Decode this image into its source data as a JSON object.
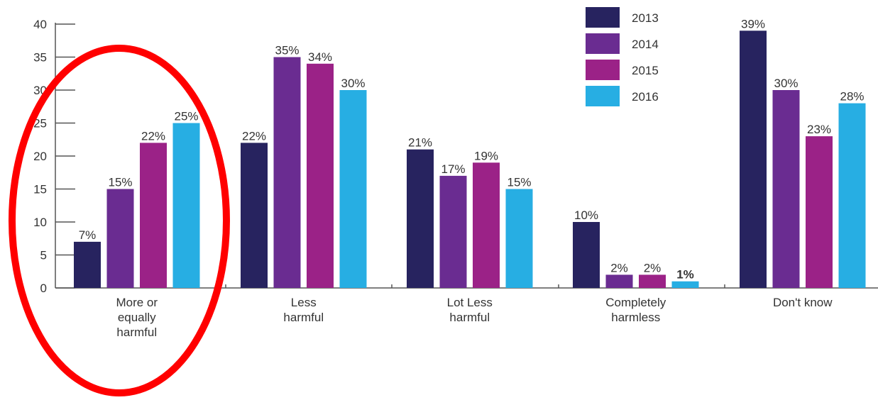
{
  "chart_data": {
    "type": "bar",
    "title": "",
    "xlabel": "",
    "ylabel": "",
    "ylim": [
      0,
      40
    ],
    "yticks": [
      0,
      5,
      10,
      15,
      20,
      25,
      30,
      35,
      40
    ],
    "ytick_labels": [
      "0",
      "5",
      "10",
      "15",
      "20",
      "25",
      "30",
      "35",
      "40"
    ],
    "grid": false,
    "legend_position": "top-center",
    "categories": [
      [
        "More or",
        "equally",
        "harmful"
      ],
      [
        "Less",
        "harmful"
      ],
      [
        "Lot Less",
        "harmful"
      ],
      [
        "Completely",
        "harmless"
      ],
      [
        "Don't know"
      ]
    ],
    "series": [
      {
        "name": "2013",
        "color": "#27235f",
        "values": [
          7,
          22,
          21,
          10,
          39
        ],
        "labels": [
          "7%",
          "22%",
          "21%",
          "10%",
          "39%"
        ]
      },
      {
        "name": "2014",
        "color": "#6a2c91",
        "values": [
          15,
          35,
          17,
          2,
          30
        ],
        "labels": [
          "15%",
          "35%",
          "17%",
          "2%",
          "30%"
        ]
      },
      {
        "name": "2015",
        "color": "#9b2287",
        "values": [
          22,
          34,
          19,
          2,
          23
        ],
        "labels": [
          "22%",
          "34%",
          "19%",
          "2%",
          "23%"
        ]
      },
      {
        "name": "2016",
        "color": "#27aee3",
        "values": [
          25,
          30,
          15,
          1,
          28
        ],
        "labels": [
          "25%",
          "30%",
          "15%",
          "1%",
          "28%"
        ]
      }
    ],
    "highlight_label_color": "#27aee3",
    "annotation": {
      "shape": "ellipse",
      "color": "#ff0000",
      "encloses_category": "More or equally harmful"
    }
  }
}
